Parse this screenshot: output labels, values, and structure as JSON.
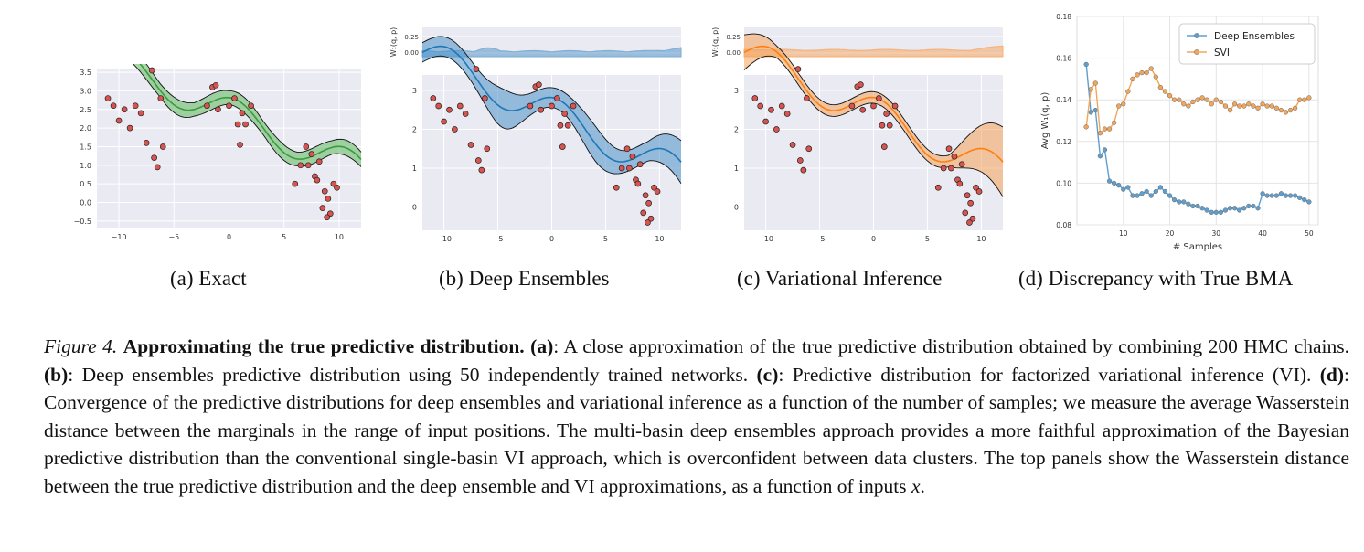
{
  "panels": [
    {
      "id": "a",
      "subcaption": "(a)  Exact",
      "color": "#3a9c3a",
      "fill": "#5cb85c",
      "xticks": [
        "−10",
        "−5",
        "0",
        "5",
        "10"
      ],
      "yticks": [
        "3.5",
        "3.0",
        "2.5",
        "2.0",
        "1.5",
        "1.0",
        "0.5",
        "0.0",
        "−0.5"
      ]
    },
    {
      "id": "b",
      "subcaption": "(b)  Deep Ensembles",
      "color": "#1f77b4",
      "fill": "#4a90c8",
      "top_ylabel": "W₁(q, p)",
      "top_yticks": [
        "0.25",
        "0.00"
      ],
      "xticks": [
        "−10",
        "−5",
        "0",
        "5",
        "10"
      ],
      "yticks": [
        "3",
        "2",
        "1",
        "0"
      ]
    },
    {
      "id": "c",
      "subcaption": "(c)  Variational Inference",
      "color": "#ff7f0e",
      "fill": "#f4a259",
      "top_ylabel": "W₁(q, p)",
      "top_yticks": [
        "0.25",
        "0.00"
      ],
      "xticks": [
        "−10",
        "−5",
        "0",
        "5",
        "10"
      ],
      "yticks": [
        "3",
        "2",
        "1",
        "0"
      ]
    }
  ],
  "panel_d": {
    "subcaption": "(d)  Discrepancy with True BMA"
  },
  "chart_data": {
    "type": "line",
    "xlabel": "# Samples",
    "ylabel": "Avg W₁(q, p)",
    "xlim": [
      0,
      52
    ],
    "ylim": [
      0.08,
      0.18
    ],
    "xticks": [
      "10",
      "20",
      "30",
      "40",
      "50"
    ],
    "yticks": [
      "0.18",
      "0.16",
      "0.14",
      "0.12",
      "0.10",
      "0.08"
    ],
    "legend_position": "top-right",
    "x": [
      2,
      3,
      4,
      5,
      6,
      7,
      8,
      9,
      10,
      11,
      12,
      13,
      14,
      15,
      16,
      17,
      18,
      19,
      20,
      21,
      22,
      23,
      24,
      25,
      26,
      27,
      28,
      29,
      30,
      31,
      32,
      33,
      34,
      35,
      36,
      37,
      38,
      39,
      40,
      41,
      42,
      43,
      44,
      45,
      46,
      47,
      48,
      49,
      50
    ],
    "series": [
      {
        "name": "Deep Ensembles",
        "color": "#5f9fd0",
        "values": [
          0.157,
          0.134,
          0.135,
          0.113,
          0.116,
          0.101,
          0.1,
          0.099,
          0.097,
          0.098,
          0.094,
          0.094,
          0.095,
          0.096,
          0.094,
          0.096,
          0.098,
          0.096,
          0.094,
          0.092,
          0.091,
          0.091,
          0.09,
          0.089,
          0.089,
          0.088,
          0.087,
          0.086,
          0.086,
          0.086,
          0.087,
          0.088,
          0.088,
          0.087,
          0.088,
          0.089,
          0.089,
          0.088,
          0.095,
          0.094,
          0.094,
          0.094,
          0.095,
          0.094,
          0.094,
          0.094,
          0.093,
          0.092,
          0.091
        ]
      },
      {
        "name": "SVI",
        "color": "#f2a65a",
        "values": [
          0.127,
          0.145,
          0.148,
          0.124,
          0.126,
          0.126,
          0.129,
          0.137,
          0.138,
          0.144,
          0.15,
          0.152,
          0.153,
          0.153,
          0.155,
          0.151,
          0.146,
          0.144,
          0.142,
          0.14,
          0.14,
          0.138,
          0.137,
          0.139,
          0.14,
          0.141,
          0.14,
          0.138,
          0.14,
          0.139,
          0.137,
          0.135,
          0.138,
          0.137,
          0.137,
          0.138,
          0.137,
          0.136,
          0.138,
          0.137,
          0.137,
          0.136,
          0.135,
          0.134,
          0.135,
          0.136,
          0.14,
          0.14,
          0.141
        ]
      }
    ]
  },
  "caption": {
    "fig_label": "Figure 4.",
    "title": "Approximating the true predictive distribution.",
    "a_label": "(a)",
    "a_text": ": A close approximation of the true predictive distribution obtained by combining 200 HMC chains. ",
    "b_label": "(b)",
    "b_text": ": Deep ensembles predictive distribution using 50 independently trained networks. ",
    "c_label": "(c)",
    "c_text": ": Predictive distribution for factorized variational inference (VI). ",
    "d_label": "(d)",
    "d_text": ": Convergence of the predictive distributions for deep ensembles and variational inference as a function of the number of samples; we measure the average Wasserstein distance between the marginals in the range of input positions. The multi-basin deep ensembles approach provides a more faithful approximation of the Bayesian predictive distribution than the conventional single-basin VI approach, which is overconfident between data clusters. The top panels show the Wasserstein distance between the true predictive distribution and the deep ensemble and VI approximations, as a function of inputs ",
    "x_var": "x",
    "end": "."
  }
}
